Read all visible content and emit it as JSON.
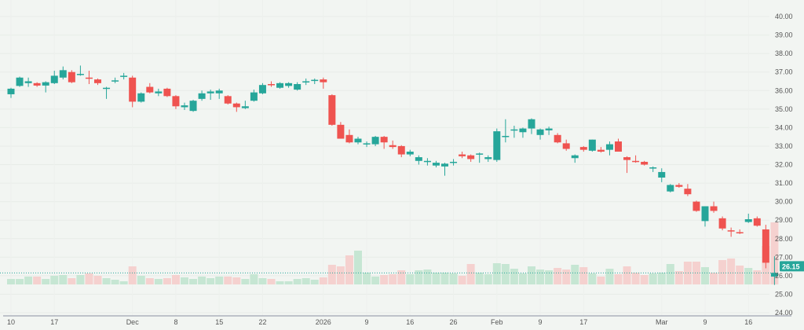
{
  "chart_data": {
    "type": "candlestick",
    "title": "",
    "xlabel": "",
    "ylabel": "",
    "ylim": [
      24,
      40
    ],
    "y_ticks": [
      "40.00",
      "39.00",
      "38.00",
      "37.00",
      "36.00",
      "35.00",
      "34.00",
      "33.00",
      "32.00",
      "31.00",
      "30.00",
      "29.00",
      "28.00",
      "27.00",
      "26.00",
      "25.00",
      "24.00"
    ],
    "y_axis_position": "right",
    "grid": true,
    "last_price": {
      "value": 26.15,
      "label": "26.15"
    },
    "colors": {
      "up": "#26a69a",
      "down": "#ef5350",
      "volume_up": "#c6e6d3",
      "volume_down": "#f5d1cf",
      "background": "#f2f5f2"
    },
    "x_ticks": [
      {
        "label": "10",
        "date": "Nov 10"
      },
      {
        "label": "17",
        "date": "Nov 17"
      },
      {
        "label": "Dec",
        "date": "Dec 1"
      },
      {
        "label": "8",
        "date": "Dec 8"
      },
      {
        "label": "15",
        "date": "Dec 15"
      },
      {
        "label": "22",
        "date": "Dec 22"
      },
      {
        "label": "2026",
        "date": "Jan 2"
      },
      {
        "label": "9",
        "date": "Jan 9"
      },
      {
        "label": "16",
        "date": "Jan 16"
      },
      {
        "label": "26",
        "date": "Jan 26"
      },
      {
        "label": "Feb",
        "date": "Feb 2"
      },
      {
        "label": "9",
        "date": "Feb 9"
      },
      {
        "label": "17",
        "date": "Feb 17"
      },
      {
        "label": "Mar",
        "date": "Mar 2"
      },
      {
        "label": "9",
        "date": "Mar 9"
      },
      {
        "label": "16",
        "date": "Mar 16"
      }
    ],
    "candle_fields": [
      "date",
      "open",
      "high",
      "low",
      "close"
    ],
    "candles": [
      [
        "Nov 10",
        35.8,
        36.15,
        35.6,
        36.1
      ],
      [
        "Nov 11",
        36.25,
        36.75,
        36.2,
        36.7
      ],
      [
        "Nov 12",
        36.4,
        36.7,
        36.2,
        36.5
      ],
      [
        "Nov 13",
        36.4,
        36.45,
        36.2,
        36.27
      ],
      [
        "Nov 14",
        36.27,
        36.5,
        35.9,
        36.45
      ],
      [
        "Nov 17",
        36.4,
        37.07,
        36.35,
        36.8
      ],
      [
        "Nov 18",
        36.7,
        37.3,
        36.6,
        37.1
      ],
      [
        "Nov 19",
        37.0,
        37.1,
        36.4,
        36.45
      ],
      [
        "Nov 20",
        36.85,
        37.35,
        36.8,
        36.9
      ],
      [
        "Nov 21",
        36.7,
        37.07,
        36.35,
        36.65
      ],
      [
        "Nov 24",
        36.6,
        36.65,
        36.3,
        36.4
      ],
      [
        "Nov 25",
        36.1,
        36.2,
        35.55,
        36.15
      ],
      [
        "Nov 26",
        36.5,
        36.7,
        36.4,
        36.55
      ],
      [
        "Nov 28",
        36.75,
        36.95,
        36.6,
        36.8
      ],
      [
        "Dec 1",
        36.7,
        36.8,
        35.1,
        35.4
      ],
      [
        "Dec 2",
        35.4,
        35.9,
        35.35,
        35.85
      ],
      [
        "Dec 3",
        36.2,
        36.4,
        35.85,
        35.9
      ],
      [
        "Dec 4",
        35.85,
        36.1,
        35.7,
        35.95
      ],
      [
        "Dec 5",
        36.1,
        36.15,
        35.65,
        35.7
      ],
      [
        "Dec 8",
        35.7,
        35.75,
        35.0,
        35.15
      ],
      [
        "Dec 9",
        35.1,
        35.35,
        34.95,
        35.2
      ],
      [
        "Dec 10",
        34.9,
        35.5,
        34.85,
        35.45
      ],
      [
        "Dec 11",
        35.55,
        36.0,
        35.45,
        35.85
      ],
      [
        "Dec 12",
        35.85,
        36.05,
        35.5,
        35.95
      ],
      [
        "Dec 15",
        35.85,
        36.1,
        35.55,
        36.0
      ],
      [
        "Dec 16",
        35.7,
        35.75,
        35.25,
        35.3
      ],
      [
        "Dec 17",
        35.3,
        35.35,
        34.85,
        35.1
      ],
      [
        "Dec 18",
        35.05,
        35.45,
        35.0,
        35.15
      ],
      [
        "Dec 19",
        35.45,
        36.05,
        35.4,
        35.9
      ],
      [
        "Dec 22",
        35.85,
        36.4,
        35.8,
        36.3
      ],
      [
        "Dec 23",
        36.35,
        36.5,
        36.2,
        36.3
      ],
      [
        "Dec 24",
        36.15,
        36.45,
        36.1,
        36.4
      ],
      [
        "Dec 26",
        36.25,
        36.45,
        36.15,
        36.4
      ],
      [
        "Dec 29",
        36.05,
        36.45,
        36.0,
        36.35
      ],
      [
        "Dec 30",
        36.45,
        36.65,
        36.3,
        36.5
      ],
      [
        "Dec 31",
        36.55,
        36.65,
        36.35,
        36.58
      ],
      [
        "Jan 2",
        36.6,
        36.7,
        36.1,
        36.45
      ],
      [
        "Jan 5",
        35.75,
        35.8,
        34.1,
        34.15
      ],
      [
        "Jan 6",
        34.15,
        34.3,
        33.4,
        33.4
      ],
      [
        "Jan 7",
        33.6,
        33.9,
        33.15,
        33.2
      ],
      [
        "Jan 8",
        33.2,
        33.5,
        33.1,
        33.4
      ],
      [
        "Jan 9",
        33.1,
        33.25,
        32.95,
        33.15
      ],
      [
        "Jan 12",
        33.1,
        33.55,
        33.0,
        33.5
      ],
      [
        "Jan 13",
        33.5,
        33.55,
        32.85,
        33.2
      ],
      [
        "Jan 14",
        33.05,
        33.3,
        32.85,
        32.95
      ],
      [
        "Jan 15",
        33.0,
        33.05,
        32.4,
        32.55
      ],
      [
        "Jan 16",
        32.55,
        32.8,
        32.45,
        32.7
      ],
      [
        "Jan 20",
        32.2,
        32.5,
        32.0,
        32.4
      ],
      [
        "Jan 21",
        32.15,
        32.35,
        31.95,
        32.2
      ],
      [
        "Jan 22",
        31.95,
        32.2,
        31.85,
        32.1
      ],
      [
        "Jan 23",
        31.9,
        32.1,
        31.4,
        32.05
      ],
      [
        "Jan 26",
        32.1,
        32.3,
        31.95,
        32.15
      ],
      [
        "Jan 27",
        32.55,
        32.7,
        32.35,
        32.45
      ],
      [
        "Jan 28",
        32.5,
        32.55,
        32.15,
        32.3
      ],
      [
        "Jan 29",
        32.55,
        32.65,
        32.1,
        32.6
      ],
      [
        "Jan 30",
        32.3,
        32.5,
        32.15,
        32.4
      ],
      [
        "Feb 2",
        32.25,
        33.95,
        32.15,
        33.8
      ],
      [
        "Feb 3",
        33.5,
        34.45,
        33.2,
        33.55
      ],
      [
        "Feb 4",
        33.85,
        34.1,
        33.45,
        33.9
      ],
      [
        "Feb 5",
        33.75,
        34.0,
        33.45,
        33.95
      ],
      [
        "Feb 6",
        33.95,
        34.5,
        33.65,
        34.45
      ],
      [
        "Feb 9",
        33.6,
        33.95,
        33.35,
        33.9
      ],
      [
        "Feb 10",
        33.85,
        34.05,
        33.6,
        33.95
      ],
      [
        "Feb 11",
        33.6,
        33.7,
        33.15,
        33.2
      ],
      [
        "Feb 12",
        33.15,
        33.35,
        32.75,
        32.85
      ],
      [
        "Feb 13",
        32.35,
        32.55,
        32.1,
        32.5
      ],
      [
        "Feb 17",
        32.95,
        33.0,
        32.7,
        32.8
      ],
      [
        "Feb 18",
        32.75,
        33.35,
        32.7,
        33.35
      ],
      [
        "Feb 19",
        32.8,
        32.95,
        32.65,
        32.7
      ],
      [
        "Feb 20",
        32.8,
        33.25,
        32.5,
        33.1
      ],
      [
        "Feb 23",
        33.25,
        33.4,
        32.7,
        32.7
      ],
      [
        "Feb 24",
        32.4,
        32.45,
        31.55,
        32.25
      ],
      [
        "Feb 25",
        32.2,
        32.5,
        32.1,
        32.15
      ],
      [
        "Feb 26",
        32.15,
        32.2,
        31.95,
        32.0
      ],
      [
        "Feb 27",
        31.8,
        31.9,
        31.6,
        31.85
      ],
      [
        "Mar 2",
        31.3,
        31.8,
        31.05,
        31.6
      ],
      [
        "Mar 3",
        30.55,
        30.95,
        30.5,
        30.9
      ],
      [
        "Mar 4",
        30.9,
        31.0,
        30.75,
        30.8
      ],
      [
        "Mar 5",
        30.7,
        30.95,
        30.3,
        30.4
      ],
      [
        "Mar 6",
        30.0,
        30.05,
        29.45,
        29.5
      ],
      [
        "Mar 9",
        28.95,
        29.75,
        28.65,
        29.75
      ],
      [
        "Mar 10",
        29.75,
        30.0,
        29.4,
        29.5
      ],
      [
        "Mar 11",
        29.1,
        29.2,
        28.45,
        28.55
      ],
      [
        "Mar 12",
        28.45,
        28.6,
        28.1,
        28.4
      ],
      [
        "Mar 13",
        28.35,
        28.5,
        28.25,
        28.3
      ],
      [
        "Mar 16",
        28.9,
        29.35,
        28.85,
        29.05
      ],
      [
        "Mar 17",
        29.1,
        29.2,
        28.65,
        28.7
      ],
      [
        "Mar 18",
        28.5,
        28.75,
        26.4,
        26.7
      ],
      [
        "Mar 19",
        25.95,
        27.05,
        25.5,
        26.15
      ]
    ],
    "volume_relative": [
      7,
      7,
      10,
      10,
      7,
      11,
      12,
      8,
      12,
      14,
      11,
      8,
      6,
      4,
      23,
      11,
      8,
      7,
      8,
      12,
      9,
      7,
      10,
      8,
      10,
      10,
      9,
      7,
      13,
      8,
      7,
      4,
      4,
      7,
      8,
      6,
      9,
      25,
      23,
      37,
      43,
      15,
      10,
      12,
      13,
      18,
      13,
      18,
      19,
      15,
      15,
      14,
      11,
      26,
      15,
      13,
      27,
      26,
      20,
      14,
      23,
      19,
      18,
      21,
      19,
      25,
      22,
      14,
      10,
      20,
      13,
      23,
      15,
      12,
      14,
      15,
      26,
      17,
      29,
      29,
      22,
      15,
      31,
      33,
      24,
      21,
      18,
      49,
      79
    ],
    "volume_direction": [
      "u",
      "u",
      "u",
      "d",
      "u",
      "u",
      "u",
      "d",
      "u",
      "d",
      "d",
      "u",
      "u",
      "u",
      "d",
      "u",
      "d",
      "u",
      "d",
      "d",
      "u",
      "u",
      "u",
      "u",
      "u",
      "d",
      "d",
      "u",
      "u",
      "u",
      "d",
      "u",
      "u",
      "u",
      "u",
      "u",
      "d",
      "d",
      "d",
      "d",
      "u",
      "u",
      "u",
      "d",
      "d",
      "d",
      "u",
      "u",
      "u",
      "u",
      "u",
      "u",
      "d",
      "d",
      "u",
      "u",
      "u",
      "u",
      "u",
      "u",
      "u",
      "u",
      "u",
      "d",
      "d",
      "u",
      "d",
      "u",
      "d",
      "u",
      "d",
      "d",
      "d",
      "d",
      "u",
      "u",
      "u",
      "d",
      "d",
      "d",
      "u",
      "d",
      "d",
      "d",
      "d",
      "u",
      "d",
      "d",
      "d"
    ]
  }
}
